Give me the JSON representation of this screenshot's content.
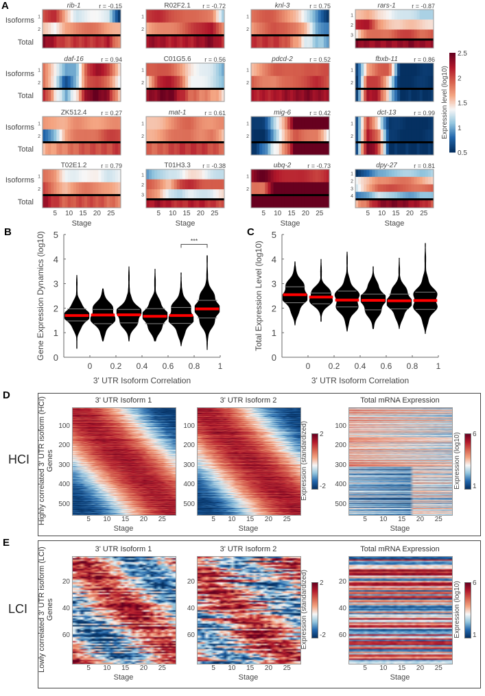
{
  "colors": {
    "colormap": [
      "#053061",
      "#2166ac",
      "#92c5de",
      "#f7f7f7",
      "#f4a582",
      "#d6604d",
      "#b2182b",
      "#67001f"
    ],
    "violin": "#000000",
    "median": "#ff0000",
    "quartile": "#888888"
  },
  "panel_labels": {
    "a": "A",
    "b": "B",
    "c": "C",
    "d": "D",
    "e": "E"
  },
  "panel_a": {
    "row_label_isoforms": "Isoforms",
    "row_label_total": "Total",
    "xlabel": "Stage",
    "xticks": [
      5,
      10,
      15,
      20,
      25
    ],
    "stages": 28,
    "colorbar": {
      "label": "Expression level (log10)",
      "ticks": [
        2.5,
        2,
        1.5,
        1,
        0.5
      ],
      "range": [
        0.5,
        2.5
      ]
    },
    "genes": [
      {
        "name": "rib-1",
        "italic": true,
        "r": "r = -0.15",
        "isoforms": [
          [
            2.0,
            2.1,
            1.6,
            1.3,
            1.3,
            1.3,
            1.3,
            0.6
          ],
          [
            1.5,
            1.3,
            1.7,
            1.8,
            1.8,
            1.8,
            1.7,
            1.6
          ]
        ],
        "total": [
          2.4,
          2.2,
          2.0,
          2.1,
          2.1,
          2.1,
          2.2,
          1.7
        ]
      },
      {
        "name": "R02F2.1",
        "italic": false,
        "r": "r = -0.72",
        "isoforms": [
          [
            2.1,
            2.1,
            2.0,
            2.0,
            1.9,
            1.8,
            1.8,
            1.2
          ],
          [
            1.6,
            1.7,
            1.8,
            1.9,
            2.0,
            2.1,
            2.3,
            1.8
          ]
        ],
        "total": [
          2.3,
          2.3,
          2.2,
          2.2,
          2.2,
          2.3,
          2.4,
          2.1
        ]
      },
      {
        "name": "knl-3",
        "italic": true,
        "r": "r = 0.75",
        "isoforms": [
          [
            1.9,
            1.9,
            1.9,
            1.8,
            1.6,
            1.2,
            0.9,
            0.6
          ],
          [
            1.7,
            1.8,
            2.0,
            2.0,
            1.8,
            1.5,
            1.0,
            0.9
          ]
        ],
        "total": [
          2.1,
          2.1,
          2.1,
          2.0,
          1.7,
          1.3,
          1.1,
          1.0
        ]
      },
      {
        "name": "rars-1",
        "italic": true,
        "r": "r = -0.87",
        "isoforms": [
          [
            1.6,
            1.6,
            1.4,
            1.4,
            1.3,
            1.2,
            1.1,
            1.2
          ],
          [
            2.2,
            2.2,
            1.7,
            1.6,
            1.5,
            1.5,
            1.5,
            1.5
          ],
          [
            1.4,
            1.8,
            1.9,
            1.9,
            2.0,
            2.0,
            1.9,
            2.0
          ]
        ],
        "total": [
          2.4,
          2.3,
          2.3,
          2.3,
          2.3,
          2.4,
          2.3,
          2.3
        ]
      },
      {
        "name": "daf-16",
        "italic": true,
        "r": "r = 0.94",
        "isoforms": [
          [
            1.9,
            1.4,
            0.9,
            1.0,
            2.1,
            2.3,
            2.0,
            1.5
          ],
          [
            1.9,
            1.3,
            0.6,
            1.1,
            2.0,
            2.0,
            1.8,
            1.4
          ]
        ],
        "total": [
          2.2,
          1.5,
          1.0,
          1.4,
          2.4,
          2.5,
          2.3,
          1.5
        ]
      },
      {
        "name": "C01G5.6",
        "italic": false,
        "r": "r = 0.56",
        "isoforms": [
          [
            2.0,
            2.0,
            1.9,
            1.7,
            1.5,
            1.3,
            1.2,
            1.0
          ],
          [
            1.5,
            2.1,
            2.2,
            2.0,
            1.4,
            1.3,
            1.2,
            1.1
          ]
        ],
        "total": [
          2.3,
          2.4,
          2.5,
          2.2,
          1.9,
          1.8,
          1.7,
          1.5
        ]
      },
      {
        "name": "pdcd-2",
        "italic": true,
        "r": "r = 0.52",
        "isoforms": [
          [
            1.6,
            1.8,
            1.9,
            1.9,
            2.0,
            2.0,
            1.9,
            2.0
          ],
          [
            2.0,
            1.8,
            1.7,
            1.9,
            2.0,
            2.0,
            2.1,
            2.0
          ]
        ],
        "total": [
          2.2,
          2.2,
          2.2,
          2.3,
          2.3,
          2.4,
          2.3,
          2.3
        ]
      },
      {
        "name": "fbxb-11",
        "italic": true,
        "r": "r = 0.86",
        "isoforms": [
          [
            0.6,
            1.7,
            1.9,
            1.9,
            0.5,
            0.5,
            0.5,
            0.5
          ],
          [
            0.5,
            2.1,
            2.0,
            1.4,
            0.5,
            0.5,
            0.5,
            0.5
          ]
        ],
        "total": [
          0.6,
          2.3,
          2.2,
          1.3,
          0.5,
          0.5,
          0.5,
          0.5
        ]
      },
      {
        "name": "ZK512.4",
        "italic": false,
        "r": "r = 0.27",
        "isoforms": [
          [
            1.7,
            1.7,
            1.6,
            1.7,
            1.7,
            1.7,
            1.7,
            1.7
          ],
          [
            0.8,
            1.1,
            1.6,
            1.8,
            1.9,
            1.9,
            2.0,
            2.0
          ]
        ],
        "total": [
          1.6,
          1.7,
          1.8,
          1.9,
          2.0,
          2.0,
          2.0,
          2.1
        ]
      },
      {
        "name": "mat-1",
        "italic": true,
        "r": "r = 0.61",
        "isoforms": [
          [
            1.5,
            1.6,
            1.7,
            1.8,
            1.9,
            1.8,
            1.7,
            1.7
          ],
          [
            1.6,
            1.7,
            1.8,
            1.8,
            1.9,
            1.8,
            1.8,
            1.5
          ]
        ],
        "total": [
          1.9,
          1.9,
          2.0,
          2.1,
          2.1,
          2.1,
          2.0,
          1.9
        ]
      },
      {
        "name": "mig-6",
        "italic": true,
        "r": "r = 0.42",
        "isoforms": [
          [
            0.5,
            0.6,
            1.2,
            1.6,
            2.6,
            2.6,
            2.6,
            2.6
          ],
          [
            0.5,
            0.5,
            1.0,
            1.5,
            2.0,
            1.9,
            1.8,
            1.3
          ]
        ],
        "total": [
          0.5,
          0.8,
          1.3,
          1.7,
          2.6,
          2.6,
          2.6,
          2.6
        ]
      },
      {
        "name": "dct-13",
        "italic": true,
        "r": "r = 0.99",
        "isoforms": [
          [
            0.6,
            2.1,
            1.5,
            0.5,
            0.5,
            0.5,
            0.5,
            0.5
          ],
          [
            0.6,
            2.3,
            1.9,
            0.5,
            0.5,
            0.5,
            0.5,
            0.5
          ]
        ],
        "total": [
          0.7,
          2.5,
          2.1,
          0.5,
          0.5,
          0.5,
          0.5,
          0.5
        ]
      },
      {
        "name": "T02E1.2",
        "italic": false,
        "r": "r = 0.79",
        "isoforms": [
          [
            1.8,
            1.7,
            1.4,
            1.3,
            1.3,
            1.4,
            1.3,
            1.3
          ],
          [
            2.0,
            1.8,
            1.6,
            1.7,
            1.8,
            1.8,
            1.7,
            1.5
          ]
        ],
        "total": [
          2.3,
          2.1,
          1.9,
          2.0,
          2.0,
          2.0,
          1.9,
          1.8
        ]
      },
      {
        "name": "T01H3.3",
        "italic": false,
        "r": "r = -0.38",
        "isoforms": [
          [
            0.9,
            1.1,
            1.3,
            1.3,
            1.4,
            1.4,
            1.3,
            1.2
          ],
          [
            1.9,
            1.8,
            1.6,
            2.0,
            2.1,
            2.0,
            2.0,
            1.9
          ],
          [
            1.8,
            1.7,
            1.3,
            1.1,
            1.3,
            1.3,
            1.3,
            1.4
          ]
        ],
        "total": [
          2.2,
          2.3,
          2.2,
          2.1,
          2.2,
          2.2,
          2.1,
          2.0
        ]
      },
      {
        "name": "ubq-2",
        "italic": true,
        "r": "r = -0.73",
        "isoforms": [
          [
            2.3,
            2.5,
            2.3,
            2.2,
            2.1,
            2.1,
            2.1,
            2.2
          ],
          [
            1.8,
            1.8,
            2.6,
            2.6,
            2.6,
            2.6,
            2.6,
            2.6
          ]
        ],
        "total": [
          2.6,
          2.6,
          2.6,
          2.6,
          2.6,
          2.6,
          2.6,
          2.6
        ]
      },
      {
        "name": "dpy-27",
        "italic": true,
        "r": "r = 0.81",
        "isoforms": [
          [
            0.5,
            0.7,
            1.0,
            1.1,
            1.1,
            1.1,
            1.1,
            1.2
          ],
          [
            1.3,
            1.5,
            1.8,
            1.8,
            1.8,
            1.8,
            1.7,
            1.5
          ],
          [
            1.2,
            1.6,
            2.0,
            2.0,
            1.9,
            1.9,
            1.9,
            1.9
          ],
          [
            0.8,
            1.0,
            1.3,
            1.1,
            1.0,
            1.0,
            1.1,
            1.0
          ]
        ],
        "total": [
          1.6,
          1.9,
          2.3,
          2.4,
          2.4,
          2.3,
          2.2,
          2.0
        ]
      }
    ]
  },
  "chart_data": [
    {
      "type": "violin",
      "panel": "B",
      "xlabel": "3' UTR Isoform Correlation",
      "ylabel": "Gene Expression Dynamics (log10)",
      "xlim": [
        -0.2,
        1
      ],
      "ylim": [
        0,
        5
      ],
      "xticks": [
        0,
        0.2,
        0.4,
        0.6,
        0.8,
        1
      ],
      "yticks": [
        0,
        1,
        2,
        3,
        4,
        5
      ],
      "bins": [
        {
          "x": -0.1,
          "median": 1.7,
          "q1": 1.48,
          "q3": 1.97,
          "min": 0.35,
          "max": 3.35
        },
        {
          "x": 0.1,
          "median": 1.72,
          "q1": 1.37,
          "q3": 1.95,
          "min": 0.65,
          "max": 2.8
        },
        {
          "x": 0.3,
          "median": 1.73,
          "q1": 1.4,
          "q3": 1.95,
          "min": 0.65,
          "max": 3.7
        },
        {
          "x": 0.5,
          "median": 1.67,
          "q1": 1.37,
          "q3": 1.98,
          "min": 0.65,
          "max": 3.6
        },
        {
          "x": 0.7,
          "median": 1.7,
          "q1": 1.38,
          "q3": 2.03,
          "min": 0.45,
          "max": 3.45
        },
        {
          "x": 0.9,
          "median": 1.97,
          "q1": 1.6,
          "q3": 2.32,
          "min": 0.3,
          "max": 4.15
        }
      ],
      "significance": {
        "from": 0.7,
        "to": 0.9,
        "y": 4.6,
        "label": "***"
      }
    },
    {
      "type": "violin",
      "panel": "C",
      "xlabel": "3' UTR Isoform Correlation",
      "ylabel": "Total Expression Level (log10)",
      "xlim": [
        -0.2,
        1
      ],
      "ylim": [
        0,
        5
      ],
      "xticks": [
        0,
        0.2,
        0.4,
        0.6,
        0.8,
        1
      ],
      "yticks": [
        0,
        1,
        2,
        3,
        4,
        5
      ],
      "bins": [
        {
          "x": -0.1,
          "median": 2.55,
          "q1": 2.22,
          "q3": 2.87,
          "min": 1.3,
          "max": 3.9
        },
        {
          "x": 0.1,
          "median": 2.45,
          "q1": 2.18,
          "q3": 2.62,
          "min": 1.45,
          "max": 4.0
        },
        {
          "x": 0.3,
          "median": 2.33,
          "q1": 2.05,
          "q3": 2.7,
          "min": 1.05,
          "max": 4.3
        },
        {
          "x": 0.5,
          "median": 2.32,
          "q1": 1.93,
          "q3": 2.57,
          "min": 1.15,
          "max": 3.7
        },
        {
          "x": 0.7,
          "median": 2.3,
          "q1": 1.97,
          "q3": 2.57,
          "min": 1.15,
          "max": 4.05
        },
        {
          "x": 0.9,
          "median": 2.31,
          "q1": 1.95,
          "q3": 2.65,
          "min": 0.95,
          "max": 4.65
        }
      ]
    },
    {
      "type": "heatmap",
      "panel": "D",
      "group": "HCI",
      "ylabel": "Highly correlated 3' UTR isoform (HCI) Genes",
      "xlabel": "Stage",
      "xticks": [
        5,
        10,
        15,
        20,
        25
      ],
      "yticks": [
        100,
        200,
        300,
        400,
        500
      ],
      "ylim": [
        0,
        545
      ],
      "titles": [
        "3' UTR Isoform 1",
        "3' UTR Isoform 2",
        "Total mRNA Expression"
      ],
      "colorbar_std": {
        "label": "Expression (standardized)",
        "ticks": [
          2,
          -2
        ]
      },
      "colorbar_total": {
        "label": "Expression (log10)",
        "ticks": [
          6,
          1
        ]
      }
    },
    {
      "type": "heatmap",
      "panel": "E",
      "group": "LCI",
      "ylabel": "Lowly correlated 3' UTR isoform (LCI) Genes",
      "xlabel": "Stage",
      "xticks": [
        5,
        10,
        15,
        20,
        25
      ],
      "yticks": [
        20,
        40,
        60
      ],
      "ylim": [
        0,
        80
      ],
      "titles": [
        "3' UTR Isoform 1",
        "3' UTR Isoform 2",
        "Total mRNA Expression"
      ],
      "colorbar_std": {
        "label": "Expression (standardized)",
        "ticks": [
          2,
          -2
        ]
      },
      "colorbar_total": {
        "label": "Expression (log10)",
        "ticks": [
          6,
          1
        ]
      }
    }
  ]
}
